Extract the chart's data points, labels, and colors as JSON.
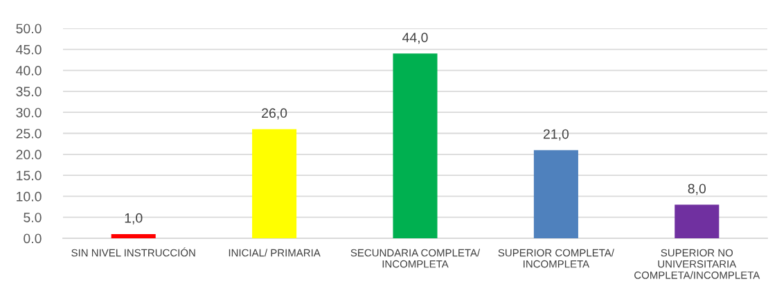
{
  "chart_data": {
    "type": "bar",
    "categories": [
      "SIN NIVEL INSTRUCCIÓN",
      "INICIAL/ PRIMARIA",
      "SECUNDARIA COMPLETA/\nINCOMPLETA",
      "SUPERIOR COMPLETA/\nINCOMPLETA",
      "SUPERIOR NO\nUNIVERSITARIA\nCOMPLETA/INCOMPLETA"
    ],
    "values": [
      1.0,
      26.0,
      44.0,
      21.0,
      8.0
    ],
    "colors": [
      "#ff0000",
      "#ffff00",
      "#00b050",
      "#4f81bd",
      "#7030a0"
    ],
    "value_labels": [
      "1,0",
      "26,0",
      "44,0",
      "21,0",
      "8,0"
    ],
    "ylim": [
      0,
      50
    ],
    "yticks": [
      {
        "value": 0,
        "label": "0.0"
      },
      {
        "value": 5,
        "label": "5.0"
      },
      {
        "value": 10,
        "label": "10.0"
      },
      {
        "value": 15,
        "label": "15.0"
      },
      {
        "value": 20,
        "label": "20.0"
      },
      {
        "value": 25,
        "label": "25.0"
      },
      {
        "value": 30,
        "label": "30.0"
      },
      {
        "value": 35,
        "label": "35.0"
      },
      {
        "value": 40,
        "label": "40.0"
      },
      {
        "value": 45,
        "label": "45.0"
      },
      {
        "value": 50,
        "label": "50.0"
      }
    ],
    "grid": "y",
    "legend": false
  }
}
